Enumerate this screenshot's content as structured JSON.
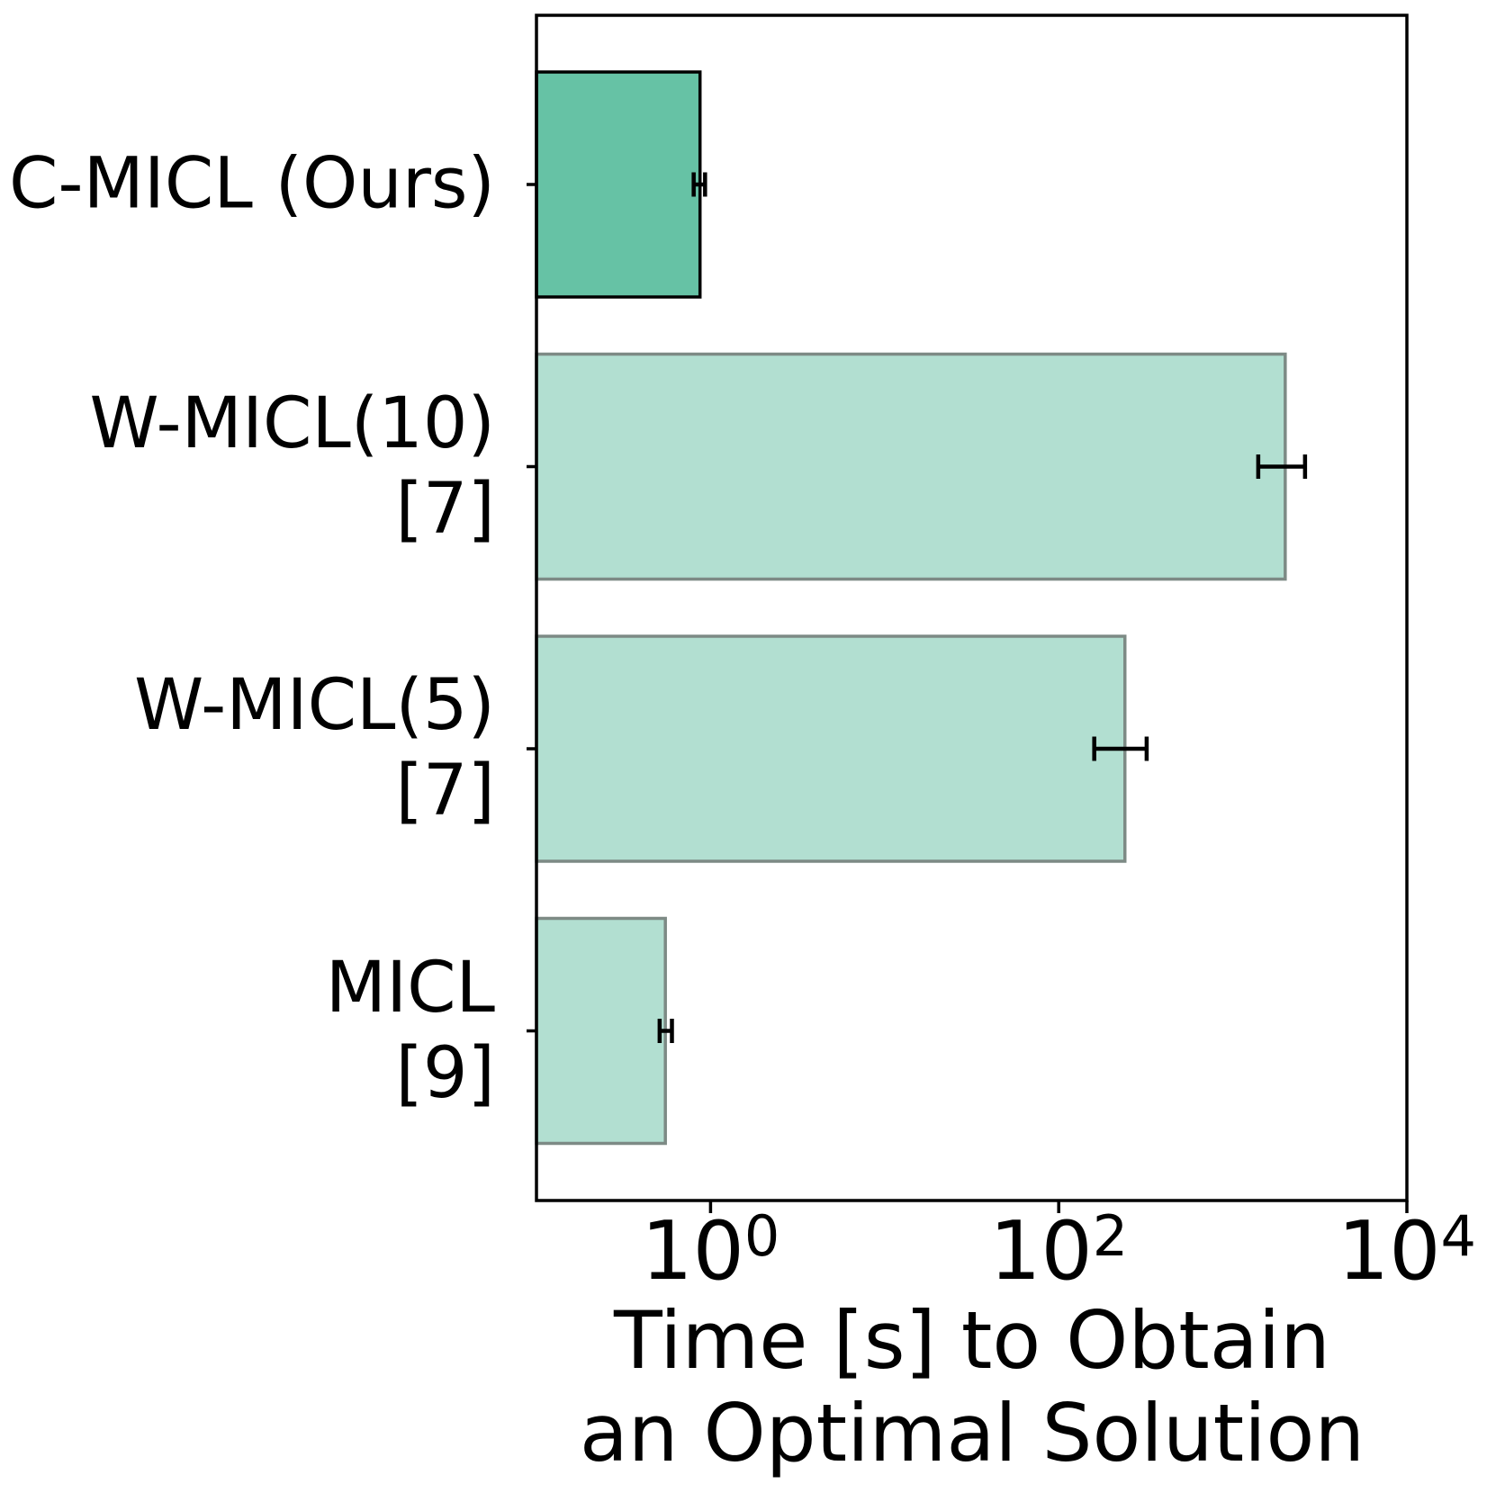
{
  "figure": {
    "background": "#ffffff",
    "axis_color": "#000000"
  },
  "chart_data": {
    "type": "bar",
    "orientation": "horizontal",
    "x_scale": "log",
    "title": "",
    "xlabel": "Time [s] to Obtain an Optimal Solution",
    "xlabel_lines": [
      "Time [s] to Obtain",
      "an Optimal Solution"
    ],
    "ylabel": "",
    "xlim": [
      0.1,
      10000
    ],
    "grid": false,
    "legend": "none",
    "error_color": "#000000",
    "categories": [
      {
        "label": "C-MICL (Ours)",
        "lines": [
          "C-MICL (Ours)"
        ],
        "value": 0.87,
        "err_low": 0.8,
        "err_high": 0.93,
        "fill": "#66c2a5",
        "edge": "#000000"
      },
      {
        "label": "W-MICL(10) [7]",
        "lines": [
          "W-MICL(10)",
          "[7]"
        ],
        "value": 2000,
        "err_low": 1400,
        "err_high": 2600,
        "fill": "#b2dfd1",
        "edge": "#7d8a85"
      },
      {
        "label": "W-MICL(5) [7]",
        "lines": [
          "W-MICL(5)",
          "[7]"
        ],
        "value": 240,
        "err_low": 160,
        "err_high": 320,
        "fill": "#b2dfd1",
        "edge": "#7d8a85"
      },
      {
        "label": "MICL [9]",
        "lines": [
          "MICL",
          "[9]"
        ],
        "value": 0.55,
        "err_low": 0.51,
        "err_high": 0.6,
        "fill": "#b2dfd1",
        "edge": "#7d8a85"
      }
    ],
    "xticks": [
      {
        "value": 1,
        "base": "10",
        "exp": "0"
      },
      {
        "value": 100,
        "base": "10",
        "exp": "2"
      },
      {
        "value": 10000,
        "base": "10",
        "exp": "4"
      }
    ]
  }
}
